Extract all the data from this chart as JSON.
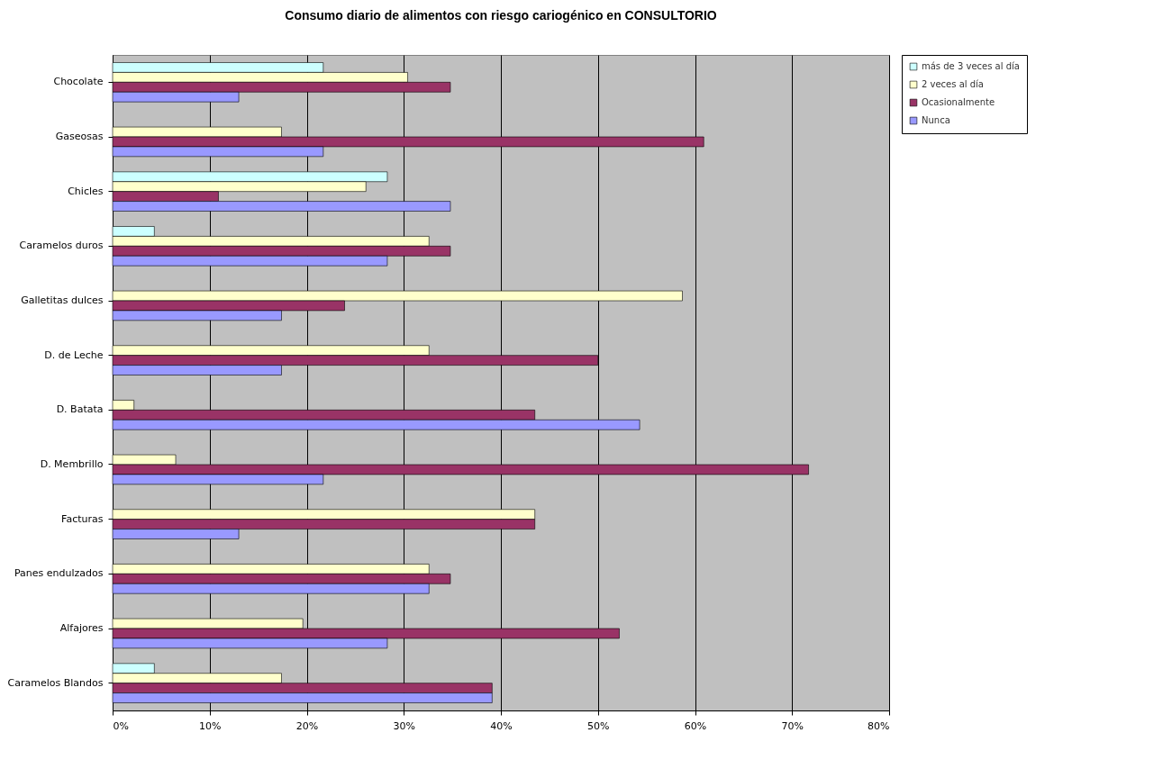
{
  "chart_data": {
    "type": "bar",
    "orientation": "horizontal",
    "title": "Consumo diario de alimentos con riesgo cariogénico en CONSULTORIO",
    "categories": [
      "Chocolate",
      "Gaseosas",
      "Chicles",
      "Caramelos duros",
      "Galletitas dulces",
      "D. de Leche",
      "D. Batata",
      "D. Membrillo",
      "Facturas",
      "Panes endulzados",
      "Alfajores",
      "Caramelos Blandos"
    ],
    "series": [
      {
        "name": "más de 3 veces al día",
        "color": "#ccffff",
        "values": [
          21.7,
          null,
          28.3,
          4.3,
          null,
          null,
          null,
          null,
          null,
          null,
          null,
          4.3
        ]
      },
      {
        "name": "2 veces al día",
        "color": "#ffffcc",
        "values": [
          30.4,
          17.4,
          26.1,
          32.6,
          58.7,
          32.6,
          2.2,
          6.5,
          43.5,
          32.6,
          19.6,
          17.4
        ]
      },
      {
        "name": "Ocasionalmente",
        "color": "#993366",
        "values": [
          34.8,
          60.9,
          10.9,
          34.8,
          23.9,
          50.0,
          43.5,
          71.7,
          43.5,
          34.8,
          52.2,
          39.1
        ]
      },
      {
        "name": "Nunca",
        "color": "#9999ff",
        "values": [
          13.0,
          21.7,
          34.8,
          28.3,
          17.4,
          17.4,
          54.3,
          21.7,
          13.0,
          32.6,
          28.3,
          39.1
        ]
      }
    ],
    "xlim": [
      0,
      80
    ],
    "xticks": [
      {
        "value": 0,
        "label": "0%"
      },
      {
        "value": 10,
        "label": "10%"
      },
      {
        "value": 20,
        "label": "20%"
      },
      {
        "value": 30,
        "label": "30%"
      },
      {
        "value": 40,
        "label": "40%"
      },
      {
        "value": 50,
        "label": "50%"
      },
      {
        "value": 60,
        "label": "60%"
      },
      {
        "value": 70,
        "label": "70%"
      },
      {
        "value": 80,
        "label": "80%"
      }
    ],
    "grid": "x",
    "legend": "right"
  }
}
